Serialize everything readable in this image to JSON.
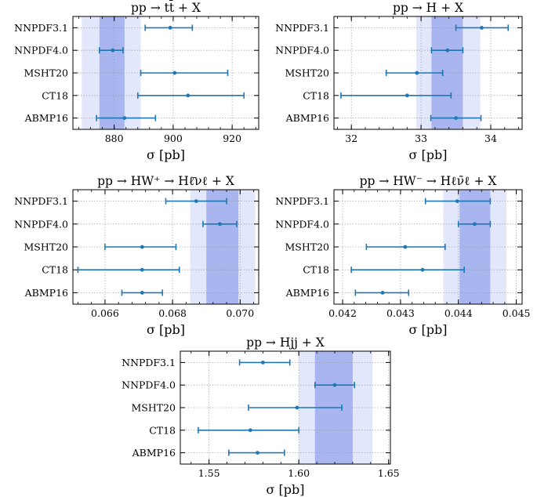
{
  "chart_data": [
    {
      "type": "errorbar",
      "title": "pp → tt̄ + X",
      "xlabel": "σ [pb]",
      "categories": [
        "NNPDF3.1",
        "NNPDF4.0",
        "MSHT20",
        "CT18",
        "ABMP16"
      ],
      "series": [
        {
          "values": [
            899.0,
            879.5,
            900.5,
            905.0,
            883.5
          ],
          "err_low": [
            8.5,
            4.5,
            11.5,
            17.0,
            9.5
          ],
          "err_high": [
            7.5,
            3.5,
            18.0,
            19.0,
            10.5
          ]
        }
      ],
      "bands": {
        "inner": [
          875.0,
          883.5
        ],
        "outer": [
          869.0,
          889.0
        ]
      },
      "xlim": [
        866.0,
        929.0
      ],
      "xticks": [
        880,
        900,
        920
      ],
      "tick_labels": [
        "880",
        "900",
        "920"
      ],
      "color": "#1f77b4"
    },
    {
      "type": "errorbar",
      "title": "pp → H + X",
      "xlabel": "σ [pb]",
      "categories": [
        "NNPDF3.1",
        "NNPDF4.0",
        "MSHT20",
        "CT18",
        "ABMP16"
      ],
      "series": [
        {
          "values": [
            33.87,
            33.38,
            32.94,
            32.8,
            33.5
          ],
          "err_low": [
            0.37,
            0.23,
            0.44,
            0.95,
            0.36
          ],
          "err_high": [
            0.38,
            0.22,
            0.37,
            0.63,
            0.36
          ]
        }
      ],
      "bands": {
        "inner": [
          33.15,
          33.6
        ],
        "outer": [
          32.93,
          33.85
        ]
      },
      "xlim": [
        31.75,
        34.45
      ],
      "xticks": [
        32,
        33,
        34
      ],
      "tick_labels": [
        "32",
        "33",
        "34"
      ],
      "color": "#1f77b4"
    },
    {
      "type": "errorbar",
      "title": "pp → HW⁺ → Hℓ̄νℓ + X",
      "xlabel": "σ [pb]",
      "categories": [
        "NNPDF3.1",
        "NNPDF4.0",
        "MSHT20",
        "CT18",
        "ABMP16"
      ],
      "series": [
        {
          "values": [
            0.0687,
            0.0694,
            0.0671,
            0.0671,
            0.0671
          ],
          "err_low": [
            0.0009,
            0.0005,
            0.0011,
            0.0019,
            0.0006
          ],
          "err_high": [
            0.0009,
            0.0005,
            0.001,
            0.0011,
            0.0006
          ]
        }
      ],
      "bands": {
        "inner": [
          0.069,
          0.06995
        ],
        "outer": [
          0.06852,
          0.07045
        ]
      },
      "xlim": [
        0.06505,
        0.07055
      ],
      "xticks": [
        0.066,
        0.068,
        0.07
      ],
      "tick_labels": [
        "0.066",
        "0.068",
        "0.070"
      ],
      "color": "#1f77b4"
    },
    {
      "type": "errorbar",
      "title": "pp → HW⁻ → Hℓν̄ℓ + X",
      "xlabel": "σ [pb]",
      "categories": [
        "NNPDF3.1",
        "NNPDF4.0",
        "MSHT20",
        "CT18",
        "ABMP16"
      ],
      "series": [
        {
          "values": [
            0.04398,
            0.04428,
            0.04308,
            0.04338,
            0.04269
          ],
          "err_low": [
            0.00055,
            0.00028,
            0.00067,
            0.00123,
            0.00047
          ],
          "err_high": [
            0.00057,
            0.00027,
            0.00069,
            0.00072,
            0.00045
          ]
        }
      ],
      "bands": {
        "inner": [
          0.04402,
          0.04455
        ],
        "outer": [
          0.04374,
          0.04483
        ]
      },
      "xlim": [
        0.04185,
        0.0451
      ],
      "xticks": [
        0.042,
        0.043,
        0.044,
        0.045
      ],
      "tick_labels": [
        "0.042",
        "0.043",
        "0.044",
        "0.045"
      ],
      "color": "#1f77b4"
    },
    {
      "type": "errorbar",
      "title": "pp → Hjj + X",
      "xlabel": "σ [pb]",
      "categories": [
        "NNPDF3.1",
        "NNPDF4.0",
        "MSHT20",
        "CT18",
        "ABMP16"
      ],
      "series": [
        {
          "values": [
            1.58,
            1.62,
            1.599,
            1.573,
            1.577
          ],
          "err_low": [
            0.013,
            0.011,
            0.027,
            0.029,
            0.016
          ],
          "err_high": [
            0.015,
            0.011,
            0.025,
            0.027,
            0.015
          ]
        }
      ],
      "bands": {
        "inner": [
          1.609,
          1.63
        ],
        "outer": [
          1.6,
          1.641
        ]
      },
      "xlim": [
        1.534,
        1.651
      ],
      "xticks": [
        1.55,
        1.6,
        1.65
      ],
      "tick_labels": [
        "1.55",
        "1.60",
        "1.65"
      ],
      "color": "#1f77b4"
    }
  ]
}
